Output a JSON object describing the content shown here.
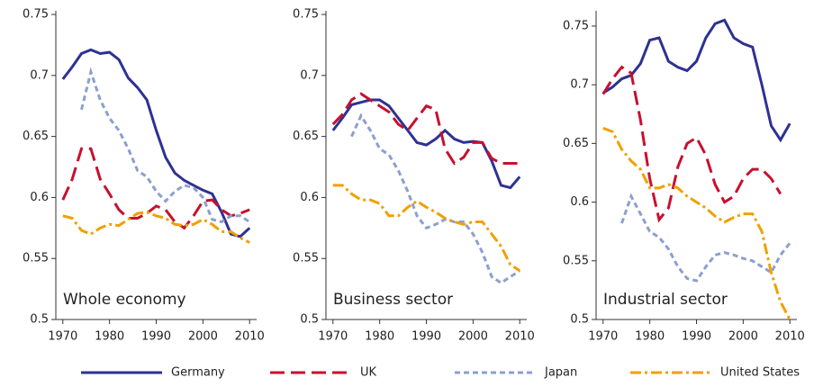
{
  "chart_data": [
    {
      "type": "line",
      "title": "Whole economy",
      "x": [
        1970,
        1972,
        1974,
        1976,
        1978,
        1980,
        1982,
        1984,
        1986,
        1988,
        1990,
        1992,
        1994,
        1996,
        1998,
        2000,
        2002,
        2004,
        2006,
        2008,
        2010
      ],
      "xlim": [
        1968.5,
        2011.5
      ],
      "xticks": [
        1970,
        1980,
        1990,
        2000,
        2010
      ],
      "ylim": [
        0.5,
        0.753
      ],
      "yticks": [
        0.5,
        0.55,
        0.6,
        0.65,
        0.7,
        0.75
      ],
      "series": [
        {
          "name": "Germany",
          "color": "#2e3192",
          "dash": "solid",
          "values": [
            0.697,
            0.707,
            0.718,
            0.721,
            0.718,
            0.719,
            0.713,
            0.698,
            0.69,
            0.68,
            0.655,
            0.633,
            0.62,
            0.614,
            0.61,
            0.606,
            0.603,
            0.588,
            0.57,
            0.568,
            0.575
          ]
        },
        {
          "name": "UK",
          "color": "#c8102e",
          "dash": "long",
          "values": [
            0.598,
            0.615,
            0.64,
            0.64,
            0.615,
            0.603,
            0.59,
            0.583,
            0.583,
            0.587,
            0.593,
            0.59,
            0.58,
            0.575,
            0.585,
            0.597,
            0.598,
            0.59,
            0.585,
            0.587,
            0.59
          ]
        },
        {
          "name": "Japan",
          "color": "#8c9fcf",
          "dash": "short",
          "values": [
            null,
            null,
            0.672,
            0.703,
            0.68,
            0.665,
            0.655,
            0.64,
            0.622,
            0.617,
            0.605,
            0.597,
            0.605,
            0.61,
            0.608,
            0.6,
            0.582,
            0.58,
            0.585,
            0.585,
            0.58
          ]
        },
        {
          "name": "United States",
          "color": "#f0a000",
          "dash": "dashdot",
          "values": [
            0.585,
            0.583,
            0.573,
            0.57,
            0.575,
            0.578,
            0.577,
            0.582,
            0.587,
            0.588,
            0.585,
            0.583,
            0.578,
            0.577,
            0.578,
            0.582,
            0.578,
            0.572,
            0.572,
            0.567,
            0.563
          ]
        }
      ]
    },
    {
      "type": "line",
      "title": "Business sector",
      "x": [
        1970,
        1972,
        1974,
        1976,
        1978,
        1980,
        1982,
        1984,
        1986,
        1988,
        1990,
        1992,
        1994,
        1996,
        1998,
        2000,
        2002,
        2004,
        2006,
        2008,
        2010
      ],
      "xlim": [
        1968.5,
        2011.5
      ],
      "xticks": [
        1970,
        1980,
        1990,
        2000,
        2010
      ],
      "ylim": [
        0.5,
        0.753
      ],
      "yticks": [
        0.5,
        0.55,
        0.6,
        0.65,
        0.7,
        0.75
      ],
      "series": [
        {
          "color": "#2e3192",
          "dash": "solid",
          "values": [
            0.655,
            0.665,
            0.676,
            0.678,
            0.68,
            0.68,
            0.675,
            0.665,
            0.655,
            0.645,
            0.643,
            0.648,
            0.655,
            0.648,
            0.645,
            0.646,
            0.645,
            0.63,
            0.61,
            0.608,
            0.617
          ]
        },
        {
          "color": "#c8102e",
          "dash": "long",
          "values": [
            0.66,
            0.668,
            0.68,
            0.685,
            0.68,
            0.675,
            0.67,
            0.66,
            0.655,
            0.665,
            0.675,
            0.672,
            0.64,
            0.628,
            0.633,
            0.645,
            0.645,
            0.632,
            0.628,
            0.628,
            0.628
          ]
        },
        {
          "color": "#8c9fcf",
          "dash": "short",
          "values": [
            null,
            null,
            0.65,
            0.667,
            0.655,
            0.64,
            0.635,
            0.622,
            0.605,
            0.585,
            0.575,
            0.578,
            0.582,
            0.58,
            0.58,
            0.57,
            0.555,
            0.535,
            0.53,
            0.535,
            0.54
          ]
        },
        {
          "color": "#f0a000",
          "dash": "dashdot",
          "values": [
            0.61,
            0.61,
            0.603,
            0.598,
            0.598,
            0.595,
            0.585,
            0.585,
            0.592,
            0.597,
            0.592,
            0.588,
            0.583,
            0.58,
            0.578,
            0.58,
            0.58,
            0.57,
            0.56,
            0.545,
            0.54
          ]
        }
      ]
    },
    {
      "type": "line",
      "title": "Industrial sector",
      "x": [
        1970,
        1972,
        1974,
        1976,
        1978,
        1980,
        1982,
        1984,
        1986,
        1988,
        1990,
        1992,
        1994,
        1996,
        1998,
        2000,
        2002,
        2004,
        2006,
        2008,
        2010
      ],
      "xlim": [
        1968.5,
        2011.5
      ],
      "xticks": [
        1970,
        1980,
        1990,
        2000,
        2010
      ],
      "ylim": [
        0.5,
        0.763
      ],
      "yticks": [
        0.5,
        0.55,
        0.6,
        0.65,
        0.7,
        0.75
      ],
      "series": [
        {
          "color": "#2e3192",
          "dash": "solid",
          "values": [
            0.693,
            0.698,
            0.705,
            0.708,
            0.718,
            0.738,
            0.74,
            0.72,
            0.715,
            0.712,
            0.72,
            0.74,
            0.752,
            0.755,
            0.74,
            0.735,
            0.732,
            0.7,
            0.665,
            0.653,
            0.667
          ]
        },
        {
          "color": "#c8102e",
          "dash": "long",
          "values": [
            0.692,
            0.705,
            0.715,
            0.71,
            0.67,
            0.62,
            0.585,
            0.595,
            0.63,
            0.65,
            0.655,
            0.64,
            0.615,
            0.6,
            0.605,
            0.62,
            0.628,
            0.628,
            0.62,
            0.607,
            null
          ]
        },
        {
          "color": "#8c9fcf",
          "dash": "short",
          "values": [
            null,
            null,
            0.582,
            0.605,
            0.59,
            0.575,
            0.57,
            0.56,
            0.545,
            0.535,
            0.533,
            0.545,
            0.555,
            0.557,
            0.555,
            0.552,
            0.55,
            0.545,
            0.54,
            0.555,
            0.565
          ]
        },
        {
          "color": "#f0a000",
          "dash": "dashdot",
          "values": [
            0.663,
            0.66,
            0.645,
            0.635,
            0.628,
            0.612,
            0.612,
            0.615,
            0.612,
            0.605,
            0.6,
            0.595,
            0.588,
            0.583,
            0.587,
            0.59,
            0.59,
            0.575,
            0.54,
            0.515,
            0.5
          ]
        }
      ]
    }
  ]
}
